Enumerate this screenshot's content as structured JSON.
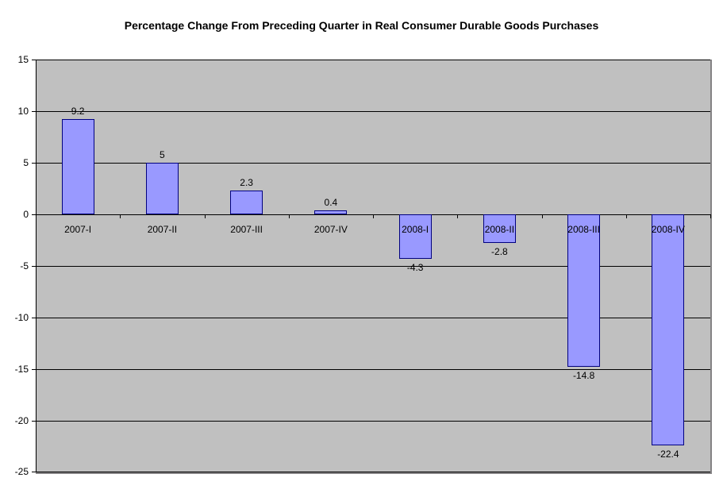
{
  "chart_data": {
    "type": "bar",
    "title": "Percentage Change From Preceding Quarter in Real Consumer Durable Goods Purchases",
    "categories": [
      "2007-I",
      "2007-II",
      "2007-III",
      "2007-IV",
      "2008-I",
      "2008-II",
      "2008-III",
      "2008-IV"
    ],
    "values": [
      9.2,
      5,
      2.3,
      0.4,
      -4.3,
      -2.8,
      -14.8,
      -22.4
    ],
    "data_labels": [
      "9.2",
      "5",
      "2.3",
      "0.4",
      "-4.3",
      "-2.8",
      "-14.8",
      "-22.4"
    ],
    "xlabel": "",
    "ylabel": "",
    "ylim": [
      -25,
      15
    ],
    "ytick_step": 5,
    "ytick_labels": [
      "15",
      "10",
      "5",
      "0",
      "-5",
      "-10",
      "-15",
      "-20",
      "-25"
    ],
    "grid": true,
    "legend": "none",
    "colors": {
      "bar_fill": "#9999FF",
      "bar_border": "#000080",
      "plot_bg": "#C0C0C0",
      "gridline": "#000000",
      "axis": "#000000",
      "plot_edge": "#848284",
      "text": "#000000",
      "page_bg": "#FFFFFF"
    }
  }
}
